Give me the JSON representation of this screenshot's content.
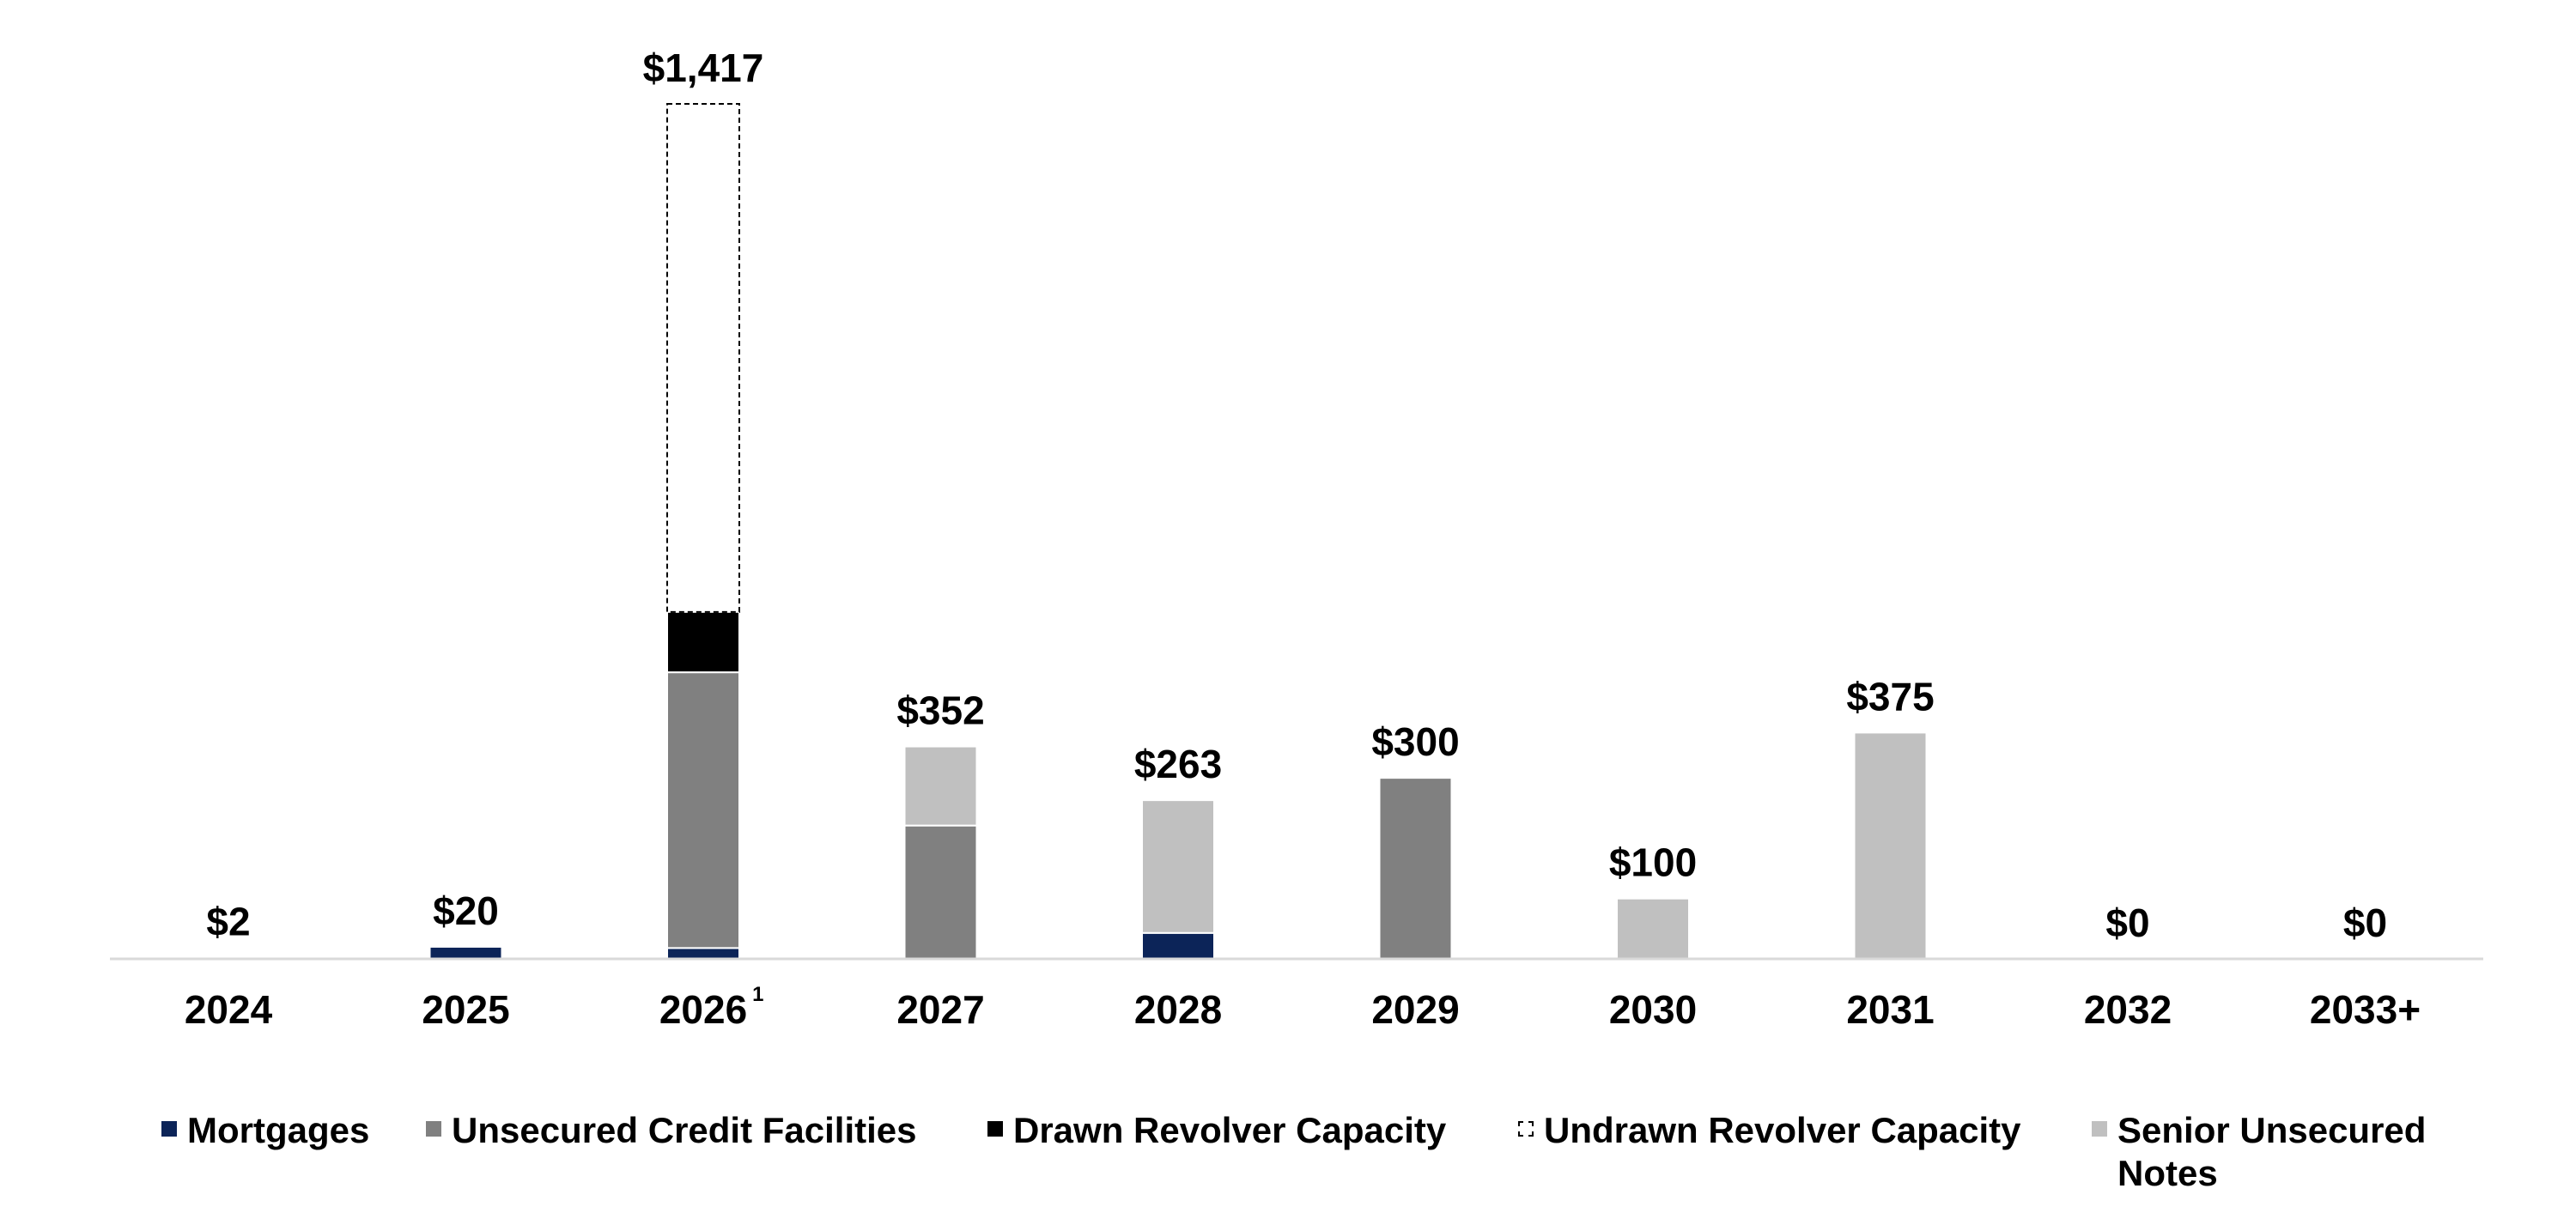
{
  "chart_data": {
    "type": "bar",
    "stacked": true,
    "categories": [
      "2024",
      "2025",
      "2026",
      "2027",
      "2028",
      "2029",
      "2030",
      "2031",
      "2032",
      "2033+"
    ],
    "category_footnotes": [
      "",
      "",
      "1",
      "",
      "",
      "",
      "",
      "",
      "",
      ""
    ],
    "series": [
      {
        "name": "Mortgages",
        "color": "#0c2458",
        "values": [
          2,
          20,
          18,
          0,
          43,
          0,
          0,
          0,
          0,
          0
        ]
      },
      {
        "name": "Unsecured Credit Facilities",
        "color": "#808080",
        "values": [
          0,
          0,
          457,
          221,
          0,
          300,
          0,
          0,
          0,
          0
        ]
      },
      {
        "name": "Drawn Revolver Capacity",
        "color": "#000000",
        "values": [
          0,
          0,
          100,
          0,
          0,
          0,
          0,
          0,
          0,
          0
        ]
      },
      {
        "name": "Undrawn Revolver Capacity",
        "color": "#ffffff",
        "style": "dashed-outline",
        "values": [
          0,
          0,
          842,
          0,
          0,
          0,
          0,
          0,
          0,
          0
        ]
      },
      {
        "name": "Senior Unsecured Notes",
        "color": "#c0c0c0",
        "values": [
          0,
          0,
          0,
          131,
          220,
          0,
          100,
          375,
          0,
          0
        ]
      }
    ],
    "totals": [
      "$2",
      "$20",
      "$1,417",
      "$352",
      "$263",
      "$300",
      "$100",
      "$375",
      "$0",
      "$0"
    ],
    "ylim": [
      0,
      1417
    ],
    "grid": false,
    "legend_position": "bottom",
    "title": "",
    "xlabel": "",
    "ylabel": ""
  }
}
